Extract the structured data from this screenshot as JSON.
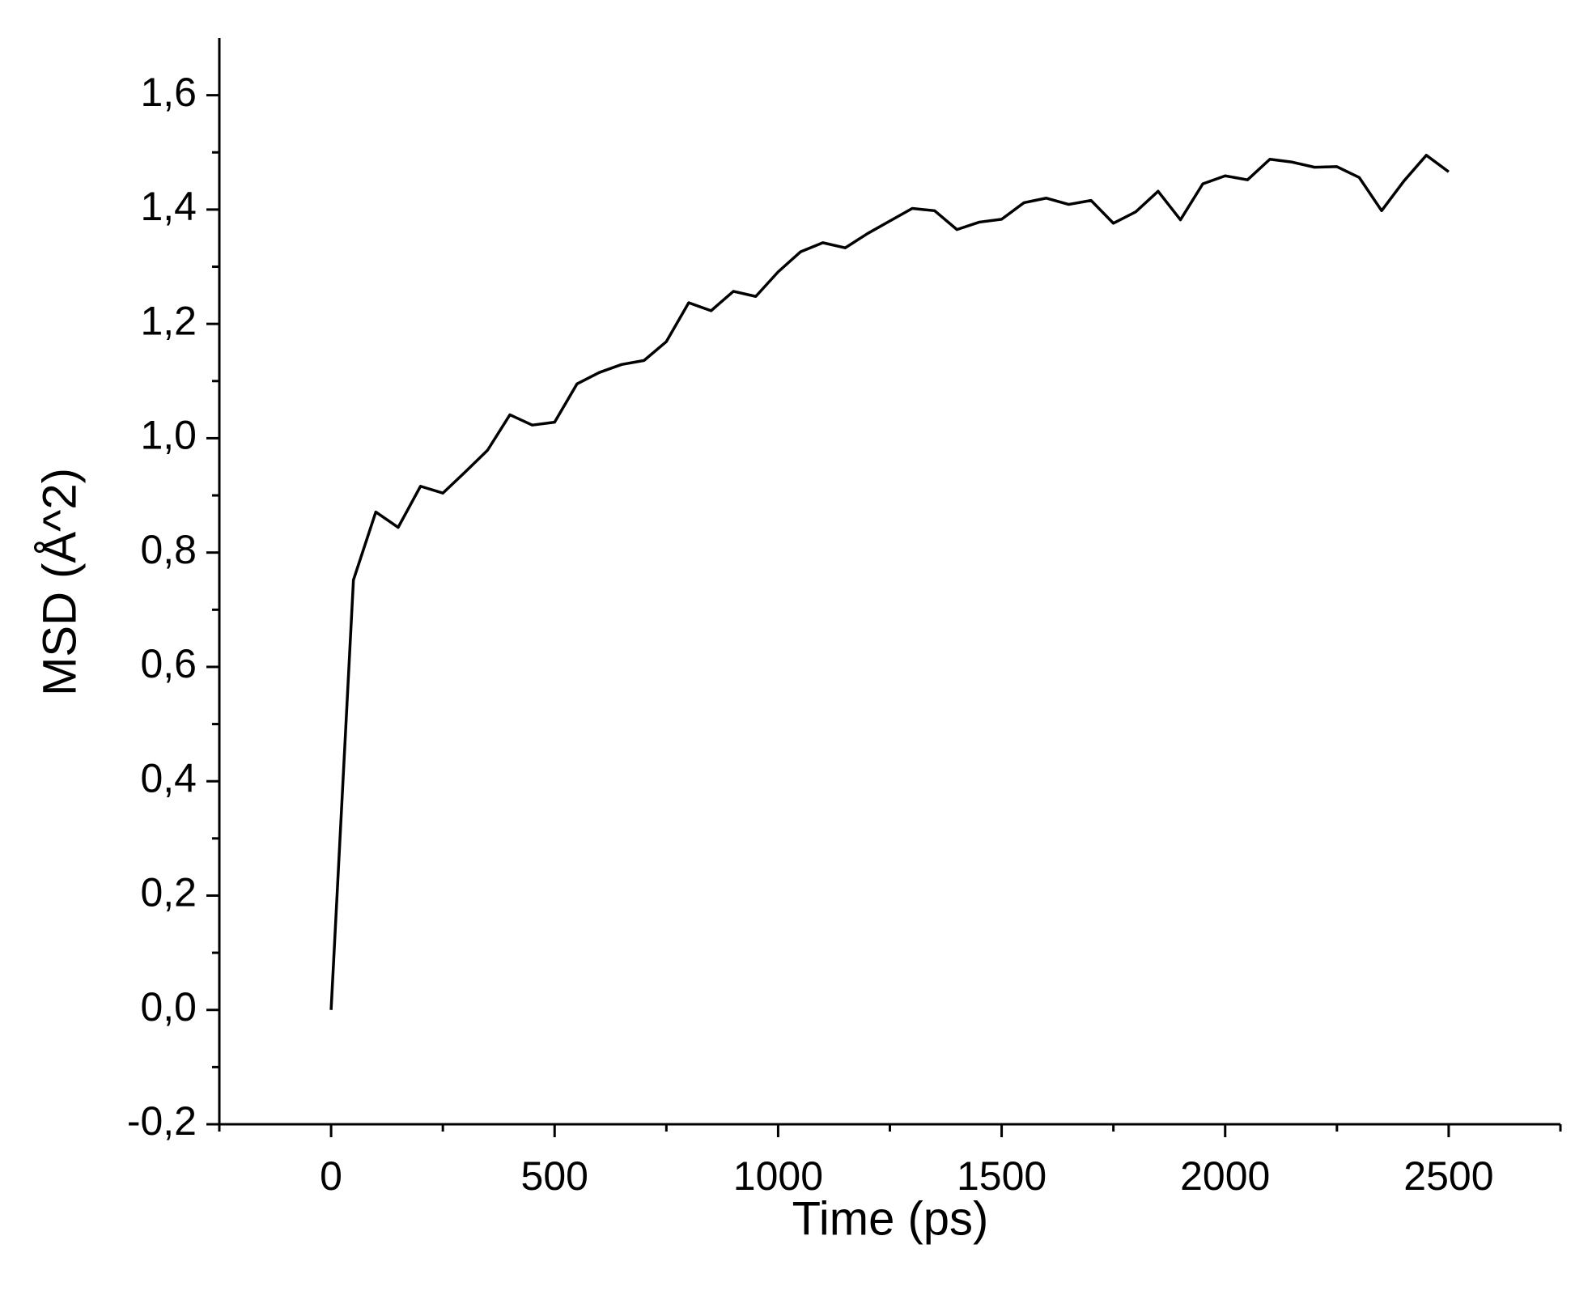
{
  "chart_data": {
    "type": "line",
    "x_label": "Time (ps)",
    "y_label": "MSD (Å^2)",
    "x": [
      0,
      50,
      100,
      150,
      200,
      250,
      300,
      350,
      400,
      450,
      500,
      550,
      600,
      650,
      700,
      750,
      800,
      850,
      900,
      950,
      1000,
      1050,
      1100,
      1150,
      1200,
      1250,
      1300,
      1350,
      1400,
      1450,
      1500,
      1550,
      1600,
      1650,
      1700,
      1750,
      1800,
      1850,
      1900,
      1950,
      2000,
      2050,
      2100,
      2150,
      2200,
      2250,
      2300,
      2350,
      2400,
      2450,
      2500
    ],
    "values": [
      0,
      0.752,
      0.871,
      0.844,
      0.916,
      0.904,
      0.941,
      0.979,
      1.041,
      1.023,
      1.028,
      1.095,
      1.115,
      1.129,
      1.136,
      1.169,
      1.237,
      1.223,
      1.257,
      1.248,
      1.291,
      1.326,
      1.342,
      1.333,
      1.358,
      1.38,
      1.402,
      1.398,
      1.365,
      1.378,
      1.383,
      1.412,
      1.42,
      1.409,
      1.416,
      1.376,
      1.396,
      1.432,
      1.382,
      1.445,
      1.459,
      1.452,
      1.488,
      1.483,
      1.474,
      1.475,
      1.456,
      1.398,
      1.45,
      1.495,
      1.466
    ],
    "color": "#000000",
    "xlim": [
      -250,
      2750
    ],
    "xticks": [
      0,
      500,
      1000,
      1500,
      2000,
      2500
    ],
    "ylim": [
      -0.2,
      1.7
    ],
    "yticks": [
      {
        "value": -0.2,
        "label": "-0,2"
      },
      {
        "value": 0,
        "label": "0,0"
      },
      {
        "value": 0.2,
        "label": "0,2"
      },
      {
        "value": 0.4,
        "label": "0,4"
      },
      {
        "value": 0.6,
        "label": "0,6"
      },
      {
        "value": 0.8,
        "label": "0,8"
      },
      {
        "value": 1.0,
        "label": "1,0"
      },
      {
        "value": 1.2,
        "label": "1,2"
      },
      {
        "value": 1.4,
        "label": "1,4"
      },
      {
        "value": 1.6,
        "label": "1,6"
      }
    ],
    "grid": false
  }
}
